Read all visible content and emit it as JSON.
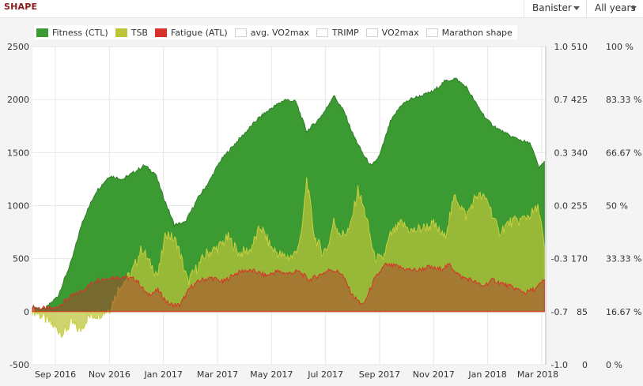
{
  "header": {
    "title": "SHAPE",
    "athlete_select": "Banister",
    "period_select": "All years"
  },
  "legend": [
    {
      "label": "Fitness (CTL)",
      "color": "#3c9a32"
    },
    {
      "label": "TSB",
      "color": "#bcc43a"
    },
    {
      "label": "Fatigue (ATL)",
      "color": "#d8322a"
    },
    {
      "label": "avg. VO2max",
      "color": ""
    },
    {
      "label": "TRIMP",
      "color": ""
    },
    {
      "label": "VO2max",
      "color": ""
    },
    {
      "label": "Marathon shape",
      "color": ""
    }
  ],
  "chart_data": {
    "type": "area",
    "title": "",
    "x_ticks": [
      "Sep 2016",
      "Nov 2016",
      "Jan 2017",
      "Mar 2017",
      "May 2017",
      "Jul 2017",
      "Sep 2017",
      "Nov 2017",
      "Jan 2018",
      "Mar 2018"
    ],
    "x_months": [
      0,
      2,
      4,
      6,
      8,
      10,
      12,
      14,
      16,
      18
    ],
    "x_range_months": [
      -0.85,
      18.15
    ],
    "y_left": {
      "ticks": [
        "-500",
        "0",
        "500",
        "1000",
        "1500",
        "2000",
        "2500"
      ],
      "min": -500,
      "max": 2500
    },
    "y_right1": {
      "ticks": [
        "-1.0",
        "-0.7",
        "-0.3",
        "0.0",
        "0.3",
        "0.7",
        "1.0"
      ]
    },
    "y_right2": {
      "ticks": [
        "0",
        "85",
        "170",
        "255",
        "340",
        "425",
        "510"
      ]
    },
    "y_right3": {
      "ticks": [
        "0 %",
        "16.67 %",
        "33.33 %",
        "50 %",
        "66.67 %",
        "83.33 %",
        "100 %"
      ]
    },
    "series": [
      {
        "name": "Fitness (CTL)",
        "color": "#3c9a32",
        "x": [
          -0.85,
          -0.4,
          0.1,
          0.6,
          1.0,
          1.5,
          2.0,
          2.5,
          3.0,
          3.3,
          3.7,
          4.0,
          4.4,
          4.8,
          5.3,
          5.7,
          6.1,
          6.6,
          7.0,
          7.5,
          8.0,
          8.5,
          8.9,
          9.3,
          9.7,
          10.0,
          10.3,
          10.7,
          11.0,
          11.4,
          11.7,
          12.0,
          12.4,
          12.8,
          13.2,
          13.6,
          14.0,
          14.4,
          14.8,
          15.2,
          15.6,
          16.0,
          16.4,
          16.8,
          17.2,
          17.6,
          17.9,
          18.1
        ],
        "y": [
          50,
          20,
          150,
          480,
          850,
          1130,
          1280,
          1250,
          1330,
          1380,
          1300,
          1080,
          820,
          840,
          1080,
          1230,
          1420,
          1570,
          1680,
          1820,
          1920,
          2000,
          1980,
          1700,
          1800,
          1900,
          2040,
          1880,
          1680,
          1480,
          1370,
          1470,
          1790,
          1950,
          2010,
          2040,
          2080,
          2170,
          2200,
          2120,
          1950,
          1800,
          1720,
          1660,
          1620,
          1580,
          1350,
          1420
        ]
      },
      {
        "name": "TSB",
        "color": "#bcc43a",
        "x": [
          -0.85,
          -0.4,
          0.0,
          0.3,
          0.6,
          0.9,
          1.2,
          1.6,
          2.0,
          2.4,
          2.8,
          3.2,
          3.5,
          3.8,
          4.1,
          4.5,
          4.9,
          5.2,
          5.6,
          6.0,
          6.4,
          6.8,
          7.2,
          7.6,
          8.0,
          8.4,
          8.8,
          9.1,
          9.3,
          9.6,
          9.9,
          10.1,
          10.3,
          10.6,
          10.9,
          11.2,
          11.5,
          11.8,
          12.1,
          12.4,
          12.8,
          13.2,
          13.6,
          14.0,
          14.4,
          14.8,
          15.2,
          15.6,
          16.0,
          16.4,
          16.8,
          17.2,
          17.6,
          17.9,
          18.1
        ],
        "y": [
          20,
          -60,
          -150,
          -200,
          -100,
          -180,
          -50,
          -20,
          20,
          250,
          350,
          600,
          450,
          350,
          750,
          650,
          280,
          400,
          550,
          600,
          700,
          550,
          580,
          800,
          600,
          520,
          520,
          700,
          1250,
          700,
          560,
          620,
          850,
          720,
          780,
          1150,
          900,
          520,
          480,
          720,
          830,
          760,
          790,
          820,
          700,
          1100,
          900,
          1100,
          1050,
          750,
          840,
          860,
          920,
          980,
          600
        ]
      },
      {
        "name": "Fatigue (ATL)",
        "color": "#d8322a",
        "x": [
          -0.85,
          -0.4,
          0.0,
          0.5,
          1.0,
          1.5,
          2.0,
          2.5,
          3.0,
          3.4,
          3.8,
          4.2,
          4.6,
          5.0,
          5.4,
          5.8,
          6.2,
          6.6,
          7.0,
          7.4,
          7.8,
          8.2,
          8.6,
          9.0,
          9.4,
          9.8,
          10.2,
          10.6,
          11.0,
          11.4,
          11.8,
          12.2,
          12.6,
          13.0,
          13.4,
          13.8,
          14.2,
          14.6,
          15.0,
          15.4,
          15.8,
          16.2,
          16.6,
          17.0,
          17.4,
          17.8,
          18.1
        ],
        "y": [
          40,
          30,
          30,
          130,
          200,
          300,
          320,
          330,
          300,
          160,
          200,
          70,
          60,
          230,
          300,
          320,
          280,
          350,
          390,
          380,
          340,
          380,
          360,
          380,
          300,
          350,
          400,
          360,
          150,
          60,
          300,
          440,
          430,
          400,
          390,
          420,
          400,
          440,
          330,
          300,
          240,
          300,
          260,
          220,
          180,
          220,
          300
        ]
      }
    ]
  }
}
